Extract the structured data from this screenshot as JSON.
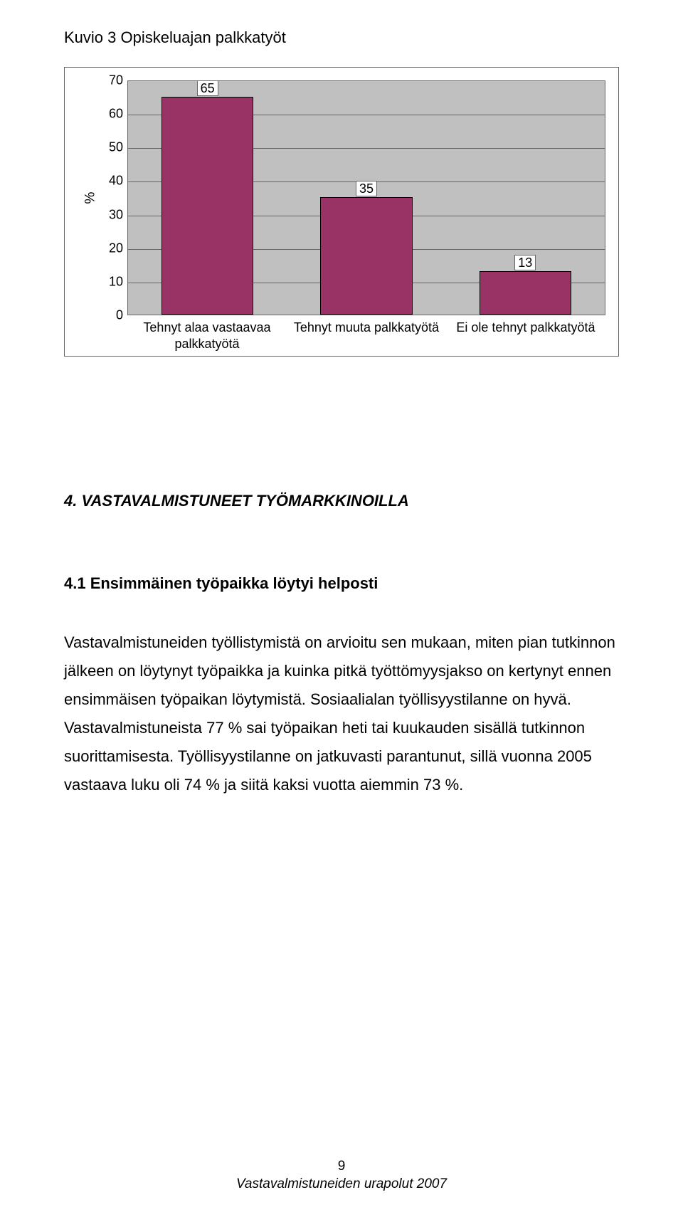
{
  "title": "Kuvio 3 Opiskeluajan palkkatyöt",
  "chart": {
    "type": "bar",
    "ylabel": "%",
    "ylim": [
      0,
      70
    ],
    "ytick_step": 10,
    "yticks": [
      0,
      10,
      20,
      30,
      40,
      50,
      60,
      70
    ],
    "categories": [
      "Tehnyt alaa vastaavaa palkkatyötä",
      "Tehnyt muuta palkkatyötä",
      "Ei ole tehnyt palkkatyötä"
    ],
    "values": [
      65,
      35,
      13
    ],
    "bar_color": "#993366",
    "bar_width_pct": 58,
    "plot_background": "#c0c0c0",
    "grid_color": "#666666",
    "border_color": "#666666",
    "value_label_bg": "#ffffff",
    "axis_fontsize": 18,
    "ylabel_fontsize": 19,
    "xlabel_fontsize": 18
  },
  "section_heading": "4. VASTAVALMISTUNEET TYÖMARKKINOILLA",
  "subheading": "4.1 Ensimmäinen työpaikka löytyi helposti",
  "body": "Vastavalmistuneiden työllistymistä on arvioitu sen mukaan, miten pian tutkinnon jälkeen on löytynyt työpaikka ja kuinka pitkä työttömyysjakso on kertynyt ennen ensimmäisen työpaikan löytymistä. Sosiaalialan työllisyystilanne on hyvä. Vastavalmistuneista 77 % sai työpaikan heti tai kuukauden sisällä tutkinnon suorittamisesta. Työllisyystilanne on jatkuvasti parantunut, sillä vuonna 2005 vastaava luku oli 74 % ja siitä kaksi vuotta aiemmin 73 %.",
  "footer": {
    "page": "9",
    "text": "Vastavalmistuneiden urapolut 2007"
  }
}
